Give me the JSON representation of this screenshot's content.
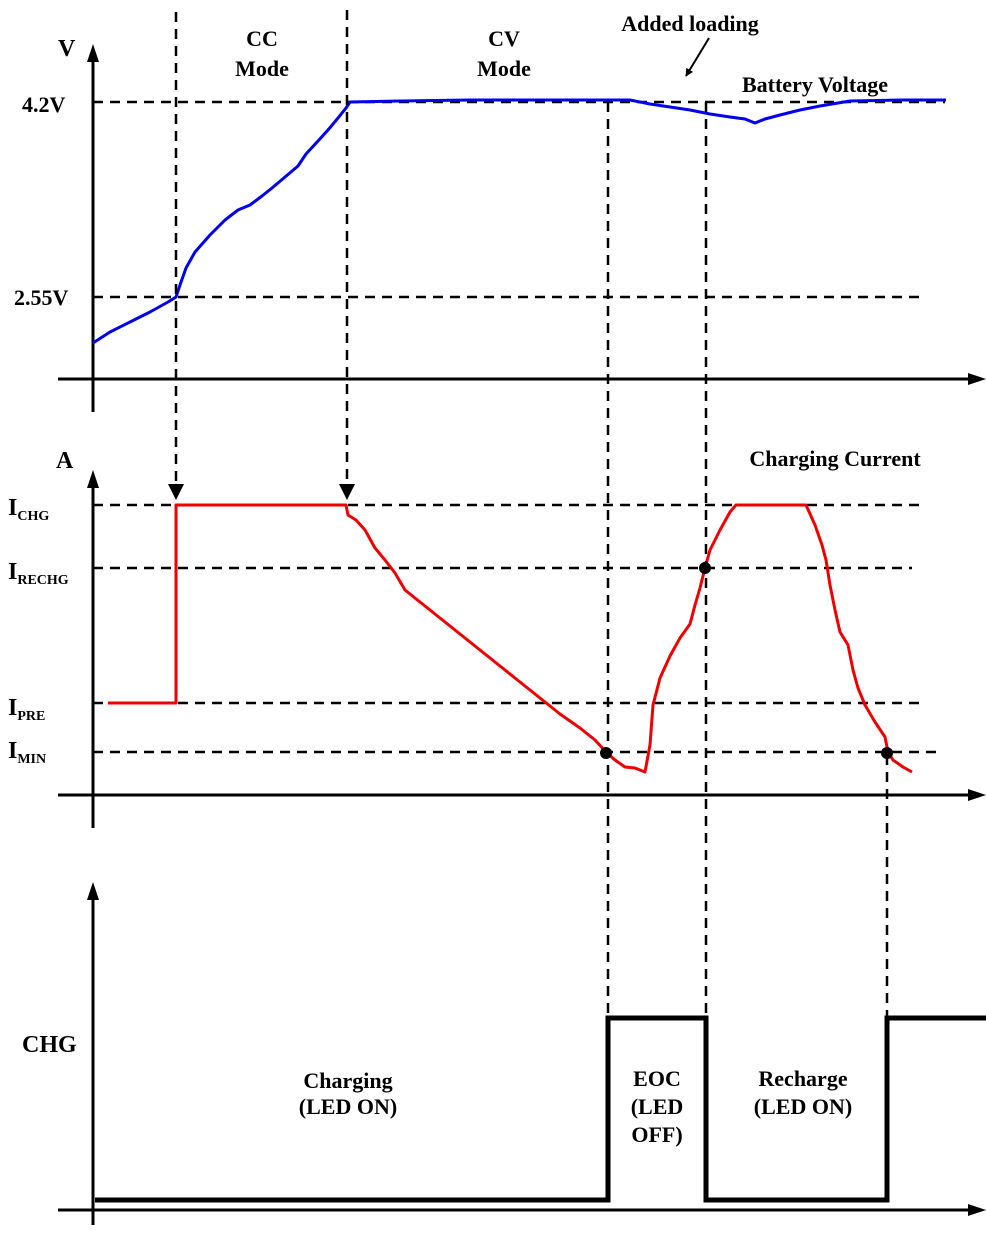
{
  "voltage_panel": {
    "axis_label": "V",
    "level_high": "4.2V",
    "level_low": "2.55V",
    "mode_cc_line1": "CC",
    "mode_cc_line2": "Mode",
    "mode_cv_line1": "CV",
    "mode_cv_line2": "Mode",
    "annotation": "Added loading",
    "curve_label": "Battery Voltage",
    "curve_color": "#0000ee"
  },
  "current_panel": {
    "axis_label": "A",
    "curve_label": "Charging Current",
    "curve_color": "#ee0000",
    "levels": [
      {
        "main": "I",
        "sub": "CHG"
      },
      {
        "main": "I",
        "sub": "RECHG"
      },
      {
        "main": "I",
        "sub": "PRE"
      },
      {
        "main": "I",
        "sub": "MIN"
      }
    ]
  },
  "chg_panel": {
    "signal_label": "CHG",
    "states": [
      {
        "line1": "Charging",
        "line2": "(LED ON)",
        "line3": ""
      },
      {
        "line1": "EOC",
        "line2": "(LED",
        "line3": "OFF)"
      },
      {
        "line1": "Recharge",
        "line2": "(LED ON)",
        "line3": ""
      }
    ]
  }
}
